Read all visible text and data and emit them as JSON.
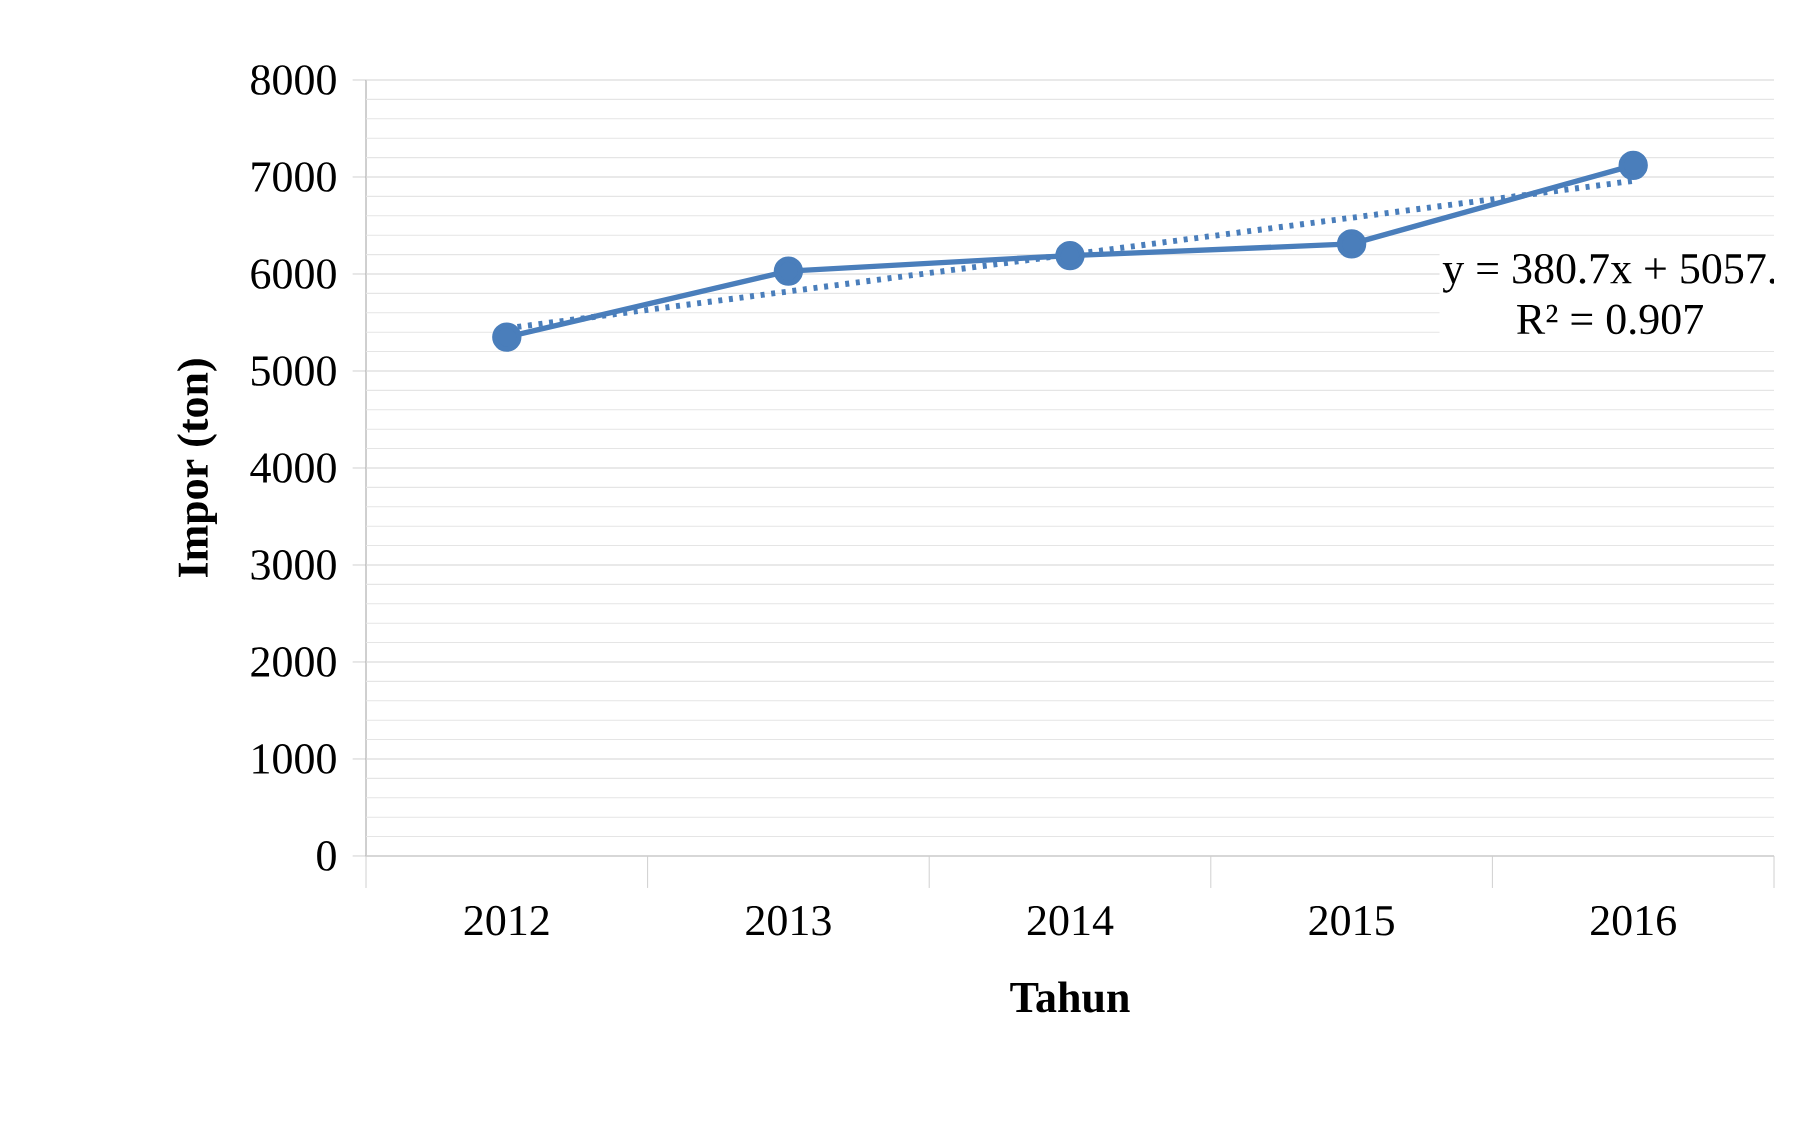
{
  "chart_data": {
    "type": "line",
    "xlabel": "Tahun",
    "ylabel": "Impor (ton)",
    "categories": [
      "2012",
      "2013",
      "2014",
      "2015",
      "2016"
    ],
    "series": [
      {
        "color": "#4a7ebb",
        "values": [
          5350,
          6030,
          6190,
          6310,
          7120
        ],
        "marker": "circle",
        "line_style": "solid"
      },
      {
        "color": "#4a7ebb",
        "values": [
          5440,
          5820,
          6200,
          6580,
          6960
        ],
        "marker": "none",
        "line_style": "dotted"
      }
    ],
    "ylim": [
      0,
      8000
    ],
    "yticks": [
      0,
      1000,
      2000,
      3000,
      4000,
      5000,
      6000,
      7000,
      8000
    ],
    "grid": "y",
    "annotations": [
      "y = 380.7x + 5057.",
      "R² = 0.907"
    ]
  }
}
